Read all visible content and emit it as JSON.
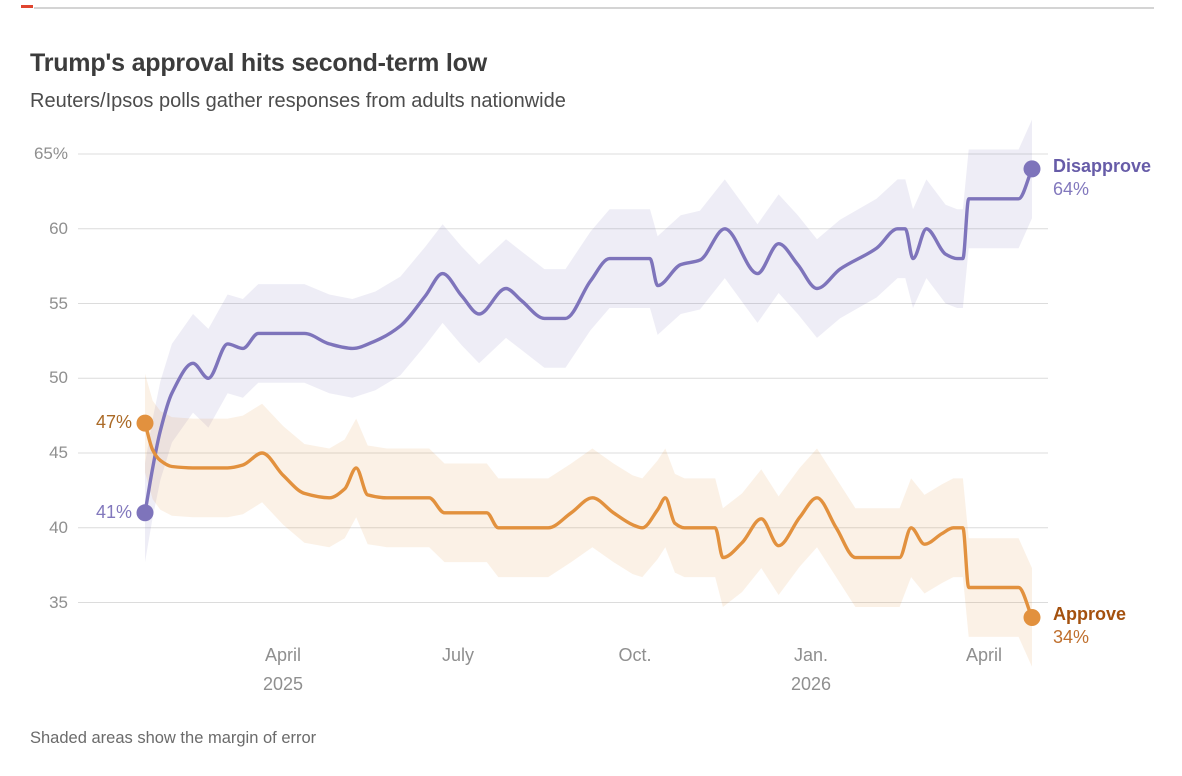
{
  "brand": {
    "rule_color": "#d4d4d4",
    "dash_color": "#e0452f"
  },
  "header": {
    "title": "Trump's approval hits second-term low",
    "subtitle": "Reuters/Ipsos polls gather responses from adults nationwide"
  },
  "footer": {
    "note": "Shaded areas show the margin of error"
  },
  "chart_data": {
    "type": "line",
    "title": "Trump's approval hits second-term low",
    "subtitle": "Reuters/Ipsos polls gather responses from adults nationwide",
    "note": "Shaded areas show the margin of error",
    "grid": "horizontal",
    "legend_position": "end-of-line-labels",
    "grid_color": "#dcdcdc",
    "y_axis": {
      "unit": "%",
      "min": 35,
      "max": 65,
      "ticks": [
        {
          "value": 65,
          "label": "65%"
        },
        {
          "value": 60,
          "label": "60"
        },
        {
          "value": 55,
          "label": "55"
        },
        {
          "value": 50,
          "label": "50"
        },
        {
          "value": 45,
          "label": "45"
        },
        {
          "value": 40,
          "label": "40"
        },
        {
          "value": 35,
          "label": "35"
        }
      ]
    },
    "x_axis": {
      "start": "2025-01-19",
      "end": "2026-04-26",
      "ticks": [
        {
          "date": "2025-04-01",
          "label": "April",
          "sublabel": "2025"
        },
        {
          "date": "2025-07-01",
          "label": "July",
          "sublabel": ""
        },
        {
          "date": "2025-10-01",
          "label": "Oct.",
          "sublabel": ""
        },
        {
          "date": "2026-01-01",
          "label": "Jan.",
          "sublabel": "2026"
        },
        {
          "date": "2026-04-01",
          "label": "April",
          "sublabel": ""
        }
      ]
    },
    "margin_of_error_pts": 3.3,
    "series": [
      {
        "name": "Disapprove",
        "color": "#7e74bb",
        "label_color": "#675ca8",
        "value_color": "#8278bd",
        "start_label": "41%",
        "end_label": "64%",
        "start_value": 41,
        "end_value": 64,
        "points": [
          [
            "2025-01-19",
            41
          ],
          [
            "2025-01-23",
            44
          ],
          [
            "2025-01-27",
            46.5
          ],
          [
            "2025-02-02",
            49
          ],
          [
            "2025-02-13",
            51
          ],
          [
            "2025-02-21",
            50
          ],
          [
            "2025-03-03",
            52.3
          ],
          [
            "2025-03-11",
            52
          ],
          [
            "2025-03-19",
            53
          ],
          [
            "2025-04-01",
            53
          ],
          [
            "2025-04-12",
            53
          ],
          [
            "2025-04-25",
            52.3
          ],
          [
            "2025-05-07",
            52
          ],
          [
            "2025-05-19",
            52.5
          ],
          [
            "2025-06-01",
            53.5
          ],
          [
            "2025-06-14",
            55.5
          ],
          [
            "2025-06-23",
            57
          ],
          [
            "2025-07-03",
            55.5
          ],
          [
            "2025-07-12",
            54.3
          ],
          [
            "2025-07-26",
            56
          ],
          [
            "2025-08-03",
            55.2
          ],
          [
            "2025-08-15",
            54
          ],
          [
            "2025-08-26",
            54
          ],
          [
            "2025-09-08",
            56.5
          ],
          [
            "2025-09-18",
            58
          ],
          [
            "2025-09-30",
            58
          ],
          [
            "2025-10-09",
            58
          ],
          [
            "2025-10-13",
            56.2
          ],
          [
            "2025-10-25",
            57.6
          ],
          [
            "2025-11-04",
            57.9
          ],
          [
            "2025-11-17",
            60
          ],
          [
            "2025-12-04",
            57
          ],
          [
            "2025-12-15",
            59
          ],
          [
            "2025-12-25",
            57.6
          ],
          [
            "2026-01-04",
            56
          ],
          [
            "2026-01-16",
            57.3
          ],
          [
            "2026-02-04",
            58.7
          ],
          [
            "2026-02-15",
            60
          ],
          [
            "2026-02-19",
            60
          ],
          [
            "2026-02-23",
            58
          ],
          [
            "2026-03-02",
            60
          ],
          [
            "2026-03-12",
            58.3
          ],
          [
            "2026-03-18",
            58
          ],
          [
            "2026-03-21",
            58
          ],
          [
            "2026-03-24",
            62
          ],
          [
            "2026-04-19",
            62
          ],
          [
            "2026-04-26",
            64
          ]
        ]
      },
      {
        "name": "Approve",
        "color": "#e2913e",
        "label_color": "#a4510e",
        "value_color": "#bf6f2d",
        "start_label": "47%",
        "end_label": "34%",
        "start_value": 47,
        "end_value": 34,
        "points": [
          [
            "2025-01-19",
            47
          ],
          [
            "2025-01-23",
            45.2
          ],
          [
            "2025-01-27",
            44.5
          ],
          [
            "2025-02-02",
            44.1
          ],
          [
            "2025-02-13",
            44
          ],
          [
            "2025-03-03",
            44
          ],
          [
            "2025-03-11",
            44.2
          ],
          [
            "2025-03-21",
            45
          ],
          [
            "2025-04-01",
            43.5
          ],
          [
            "2025-04-12",
            42.3
          ],
          [
            "2025-04-25",
            42
          ],
          [
            "2025-05-03",
            42.6
          ],
          [
            "2025-05-09",
            44
          ],
          [
            "2025-05-15",
            42.2
          ],
          [
            "2025-05-25",
            42
          ],
          [
            "2025-06-08",
            42
          ],
          [
            "2025-06-16",
            42
          ],
          [
            "2025-06-24",
            41
          ],
          [
            "2025-07-16",
            41
          ],
          [
            "2025-07-22",
            40
          ],
          [
            "2025-08-17",
            40
          ],
          [
            "2025-08-29",
            41
          ],
          [
            "2025-09-09",
            42
          ],
          [
            "2025-09-20",
            41
          ],
          [
            "2025-09-30",
            40.2
          ],
          [
            "2025-10-05",
            40
          ],
          [
            "2025-10-13",
            41.2
          ],
          [
            "2025-10-17",
            42
          ],
          [
            "2025-10-22",
            40.3
          ],
          [
            "2025-10-27",
            40
          ],
          [
            "2025-11-12",
            40
          ],
          [
            "2025-11-16",
            38
          ],
          [
            "2025-11-26",
            39
          ],
          [
            "2025-12-06",
            40.6
          ],
          [
            "2025-12-15",
            38.8
          ],
          [
            "2025-12-26",
            40.7
          ],
          [
            "2026-01-04",
            42
          ],
          [
            "2026-01-14",
            40
          ],
          [
            "2026-01-24",
            38
          ],
          [
            "2026-02-16",
            38
          ],
          [
            "2026-02-22",
            40
          ],
          [
            "2026-03-01",
            38.9
          ],
          [
            "2026-03-10",
            39.6
          ],
          [
            "2026-03-16",
            40
          ],
          [
            "2026-03-21",
            40
          ],
          [
            "2026-03-24",
            36
          ],
          [
            "2026-04-19",
            36
          ],
          [
            "2026-04-26",
            34
          ]
        ]
      }
    ]
  }
}
